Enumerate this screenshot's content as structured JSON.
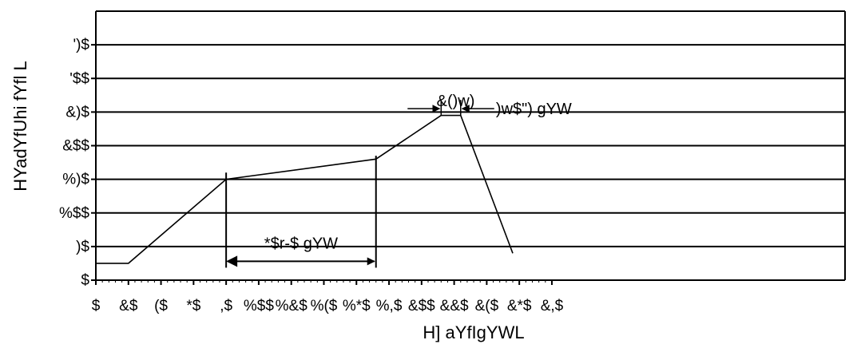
{
  "chart_data": {
    "type": "line",
    "xlabel": "H] aYfIgYWL",
    "ylabel": "HYadYfUhi fYfl   L",
    "xlim": [
      0,
      1150
    ],
    "ylim": [
      0,
      400
    ],
    "grid": true,
    "x_ticks": [
      {
        "value": 0,
        "label": "$"
      },
      {
        "value": 50,
        "label": "&$"
      },
      {
        "value": 100,
        "label": "($"
      },
      {
        "value": 150,
        "label": "*$"
      },
      {
        "value": 200,
        "label": ",$"
      },
      {
        "value": 250,
        "label": "%$$"
      },
      {
        "value": 300,
        "label": "%&$"
      },
      {
        "value": 350,
        "label": "%($"
      },
      {
        "value": 400,
        "label": "%*$"
      },
      {
        "value": 450,
        "label": "%,$"
      },
      {
        "value": 500,
        "label": "&$$"
      },
      {
        "value": 550,
        "label": "&&$"
      },
      {
        "value": 600,
        "label": "&($"
      },
      {
        "value": 650,
        "label": "&*$"
      },
      {
        "value": 700,
        "label": "&,$"
      }
    ],
    "y_ticks": [
      {
        "value": 0,
        "label": "$"
      },
      {
        "value": 50,
        "label": ")$"
      },
      {
        "value": 100,
        "label": "%$$"
      },
      {
        "value": 150,
        "label": "%)$"
      },
      {
        "value": 200,
        "label": "&$$"
      },
      {
        "value": 250,
        "label": "&)$"
      },
      {
        "value": 300,
        "label": "'$$"
      },
      {
        "value": 350,
        "label": "')$"
      }
    ],
    "series": [
      {
        "color": "#000000",
        "x": [
          0,
          50,
          200,
          430,
          530,
          560,
          640
        ],
        "y": [
          25,
          25,
          150,
          180,
          245,
          245,
          40
        ]
      }
    ],
    "annotations": [
      {
        "text": "*$r-$ gYW",
        "x_from": 200,
        "x_to": 430,
        "y": 28
      },
      {
        "text": "&()w)",
        "x_from": 530,
        "x_to": 560,
        "y": 255
      },
      {
        "text": ")w$\")  gYW",
        "x": 570,
        "y": 200
      }
    ]
  }
}
